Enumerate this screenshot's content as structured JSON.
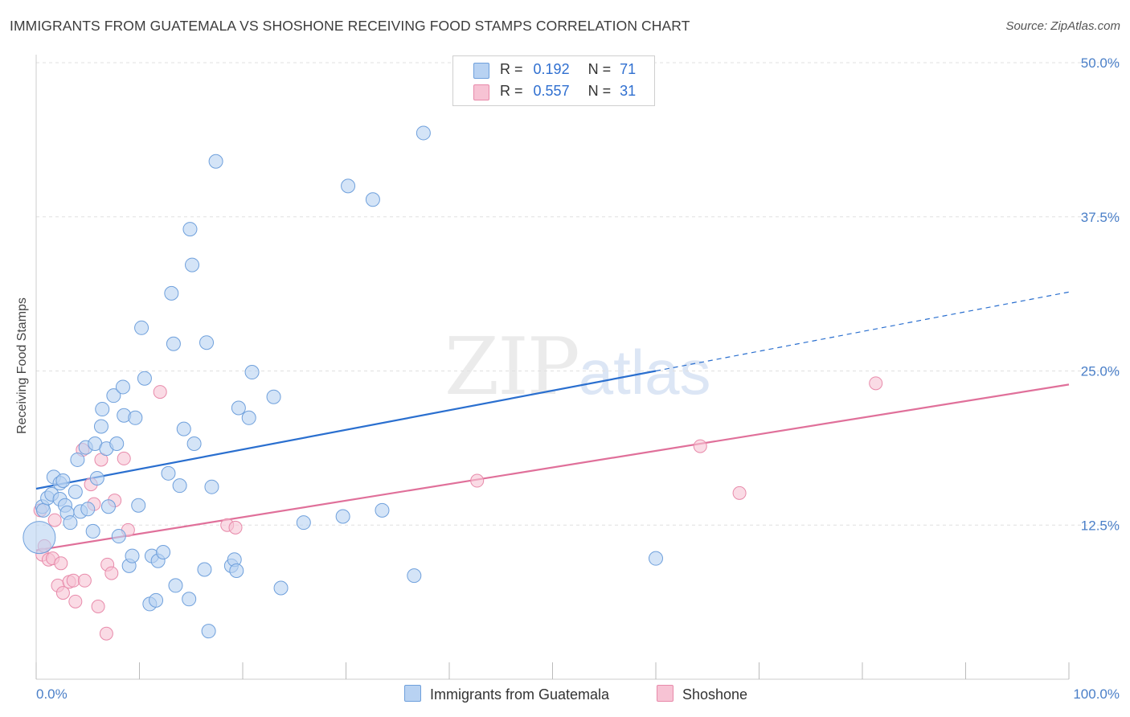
{
  "title": "IMMIGRANTS FROM GUATEMALA VS SHOSHONE RECEIVING FOOD STAMPS CORRELATION CHART",
  "source": "Source: ZipAtlas.com",
  "watermark": {
    "zip": "ZIP",
    "atlas": "atlas"
  },
  "colors": {
    "blue_fill": "#b8d2f2",
    "blue_stroke": "#6fa0dc",
    "blue_line": "#2a6fcf",
    "pink_fill": "#f7c3d4",
    "pink_stroke": "#e88aaa",
    "pink_line": "#e0709a",
    "grid": "#e0e0e0",
    "axis_label": "#4a7fc8"
  },
  "legend": {
    "rows": [
      {
        "r_label": "R =",
        "r_value": "0.192",
        "n_label": "N =",
        "n_value": "71"
      },
      {
        "r_label": "R =",
        "r_value": "0.557",
        "n_label": "N =",
        "n_value": "31"
      }
    ]
  },
  "bottom_legend": [
    "Immigrants from Guatemala",
    "Shoshone"
  ],
  "chart_data": {
    "type": "scatter",
    "title": "IMMIGRANTS FROM GUATEMALA VS SHOSHONE RECEIVING FOOD STAMPS CORRELATION CHART",
    "xlabel": "",
    "ylabel": "Receiving Food Stamps",
    "xlim": [
      0,
      100
    ],
    "ylim": [
      0,
      50
    ],
    "x_tick_labels": [
      "0.0%",
      "100.0%"
    ],
    "y_ticks": [
      12.5,
      25.0,
      37.5,
      50.0
    ],
    "y_tick_labels": [
      "12.5%",
      "25.0%",
      "37.5%",
      "50.0%"
    ],
    "grid": "horizontal dashed",
    "legend_position": "top-center",
    "series": [
      {
        "name": "Immigrants from Guatemala",
        "color": "#b8d2f2",
        "points": [
          [
            0.3,
            11.5
          ],
          [
            0.6,
            14.0
          ],
          [
            0.7,
            13.7
          ],
          [
            1.1,
            14.7
          ],
          [
            1.5,
            15.0
          ],
          [
            1.7,
            16.4
          ],
          [
            2.3,
            14.6
          ],
          [
            2.3,
            15.9
          ],
          [
            2.6,
            16.1
          ],
          [
            2.8,
            14.1
          ],
          [
            3.0,
            13.5
          ],
          [
            3.3,
            12.7
          ],
          [
            3.8,
            15.2
          ],
          [
            4.0,
            17.8
          ],
          [
            4.3,
            13.6
          ],
          [
            4.8,
            18.8
          ],
          [
            5.0,
            13.8
          ],
          [
            5.5,
            12.0
          ],
          [
            5.7,
            19.1
          ],
          [
            5.9,
            16.3
          ],
          [
            6.3,
            20.5
          ],
          [
            6.4,
            21.9
          ],
          [
            6.8,
            18.7
          ],
          [
            7.0,
            14.0
          ],
          [
            7.5,
            23.0
          ],
          [
            7.8,
            19.1
          ],
          [
            8.0,
            11.6
          ],
          [
            8.4,
            23.7
          ],
          [
            8.5,
            21.4
          ],
          [
            9.0,
            9.2
          ],
          [
            9.3,
            10.0
          ],
          [
            9.6,
            21.2
          ],
          [
            9.9,
            14.1
          ],
          [
            10.2,
            28.5
          ],
          [
            10.5,
            24.4
          ],
          [
            11.0,
            6.1
          ],
          [
            11.2,
            10.0
          ],
          [
            11.6,
            6.4
          ],
          [
            11.8,
            9.6
          ],
          [
            12.3,
            10.3
          ],
          [
            12.8,
            16.7
          ],
          [
            13.1,
            31.3
          ],
          [
            13.3,
            27.2
          ],
          [
            13.5,
            7.6
          ],
          [
            13.9,
            15.7
          ],
          [
            14.3,
            20.3
          ],
          [
            14.8,
            6.5
          ],
          [
            14.9,
            36.5
          ],
          [
            15.1,
            33.6
          ],
          [
            15.3,
            19.1
          ],
          [
            16.3,
            8.9
          ],
          [
            16.5,
            27.3
          ],
          [
            16.7,
            3.9
          ],
          [
            17.0,
            15.6
          ],
          [
            17.4,
            42.0
          ],
          [
            18.9,
            9.2
          ],
          [
            19.2,
            9.7
          ],
          [
            19.4,
            8.8
          ],
          [
            19.6,
            22.0
          ],
          [
            20.6,
            21.2
          ],
          [
            20.9,
            24.9
          ],
          [
            23.0,
            22.9
          ],
          [
            23.7,
            7.4
          ],
          [
            25.9,
            12.7
          ],
          [
            29.7,
            13.2
          ],
          [
            30.2,
            40.0
          ],
          [
            32.6,
            38.9
          ],
          [
            33.5,
            13.7
          ],
          [
            36.6,
            8.4
          ],
          [
            37.5,
            44.3
          ],
          [
            60.0,
            9.8
          ]
        ],
        "trendline": {
          "x": [
            0,
            60,
            100
          ],
          "y": [
            15.45,
            25.0,
            31.4
          ],
          "solid_until_x": 60
        }
      },
      {
        "name": "Shoshone",
        "color": "#f7c3d4",
        "points": [
          [
            0.4,
            13.7
          ],
          [
            0.6,
            10.1
          ],
          [
            0.8,
            10.8
          ],
          [
            1.2,
            9.7
          ],
          [
            1.6,
            9.8
          ],
          [
            1.8,
            12.9
          ],
          [
            2.1,
            7.6
          ],
          [
            2.4,
            9.4
          ],
          [
            2.6,
            7.0
          ],
          [
            3.2,
            7.9
          ],
          [
            3.6,
            8.0
          ],
          [
            3.8,
            6.3
          ],
          [
            4.5,
            18.6
          ],
          [
            4.7,
            8.0
          ],
          [
            5.3,
            15.8
          ],
          [
            5.6,
            14.2
          ],
          [
            6.0,
            5.9
          ],
          [
            6.3,
            17.8
          ],
          [
            6.8,
            3.7
          ],
          [
            6.9,
            9.3
          ],
          [
            7.3,
            8.6
          ],
          [
            7.6,
            14.5
          ],
          [
            8.5,
            17.9
          ],
          [
            8.9,
            12.1
          ],
          [
            12.0,
            23.3
          ],
          [
            18.5,
            12.5
          ],
          [
            19.3,
            12.3
          ],
          [
            42.7,
            16.1
          ],
          [
            64.3,
            18.9
          ],
          [
            68.1,
            15.1
          ],
          [
            81.3,
            24.0
          ]
        ],
        "trendline": {
          "x": [
            0,
            100
          ],
          "y": [
            10.45,
            23.9
          ]
        }
      }
    ]
  }
}
